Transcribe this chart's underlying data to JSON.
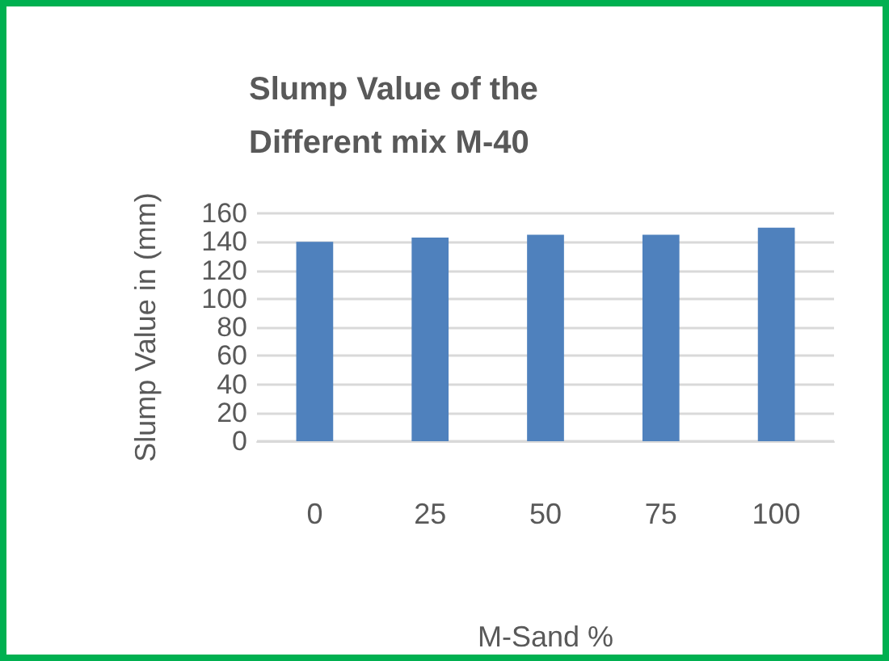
{
  "chart_data": {
    "type": "bar",
    "title": "Slump Value of the\nDifferent mix M-40",
    "categories": [
      "0",
      "25",
      "50",
      "75",
      "100"
    ],
    "values": [
      140,
      143,
      145,
      145,
      150
    ],
    "color": "#4f81bd",
    "xlabel": "M-Sand %",
    "ylabel": "Slump Value in (mm)",
    "ylim": [
      0,
      160
    ],
    "yticks": [
      0,
      20,
      40,
      60,
      80,
      100,
      120,
      140,
      160
    ],
    "grid": "y"
  }
}
